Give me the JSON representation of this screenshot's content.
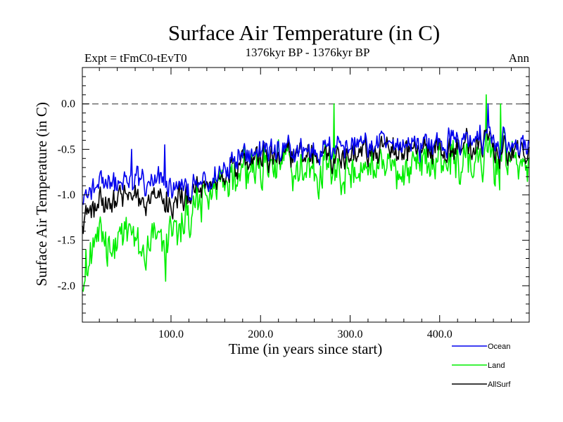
{
  "chart_data": {
    "type": "line",
    "title": "Surface Air Temperature (in C)",
    "subtitle_left": "Expt = tFmC0-tEvT0",
    "subtitle_center": "1376kyr BP - 1376kyr BP",
    "subtitle_right": "Ann",
    "xlabel": "Time (in years since start)",
    "ylabel": "Surface Air Temperature (in C)",
    "xlim": [
      1,
      500
    ],
    "ylim": [
      -2.4,
      0.4
    ],
    "xticks_major": [
      100,
      200,
      300,
      400
    ],
    "xtick_labels": [
      "100.0",
      "200.0",
      "300.0",
      "400.0"
    ],
    "yticks_major": [
      -2.0,
      -1.5,
      -1.0,
      -0.5,
      0.0
    ],
    "ytick_labels": [
      "-2.0",
      "-1.5",
      "-1.0",
      "-0.5",
      "0.0"
    ],
    "reference_line": {
      "y": 0.0,
      "style": "dashed"
    },
    "legend_placement": "bottom-right, below plot",
    "series": [
      {
        "name": "Ocean",
        "color": "#0000ee",
        "anchors": [
          [
            1,
            -1.0
          ],
          [
            15,
            -0.95
          ],
          [
            30,
            -0.85
          ],
          [
            50,
            -0.9
          ],
          [
            70,
            -0.85
          ],
          [
            90,
            -0.9
          ],
          [
            110,
            -0.95
          ],
          [
            130,
            -0.95
          ],
          [
            150,
            -0.8
          ],
          [
            165,
            -0.6
          ],
          [
            180,
            -0.48
          ],
          [
            200,
            -0.5
          ],
          [
            230,
            -0.55
          ],
          [
            260,
            -0.48
          ],
          [
            300,
            -0.45
          ],
          [
            350,
            -0.45
          ],
          [
            400,
            -0.42
          ],
          [
            450,
            -0.38
          ],
          [
            500,
            -0.48
          ]
        ],
        "noise_amplitude": 0.14,
        "spikes": [
          [
            56,
            -0.5
          ],
          [
            93,
            -0.45
          ],
          [
            454,
            0.0
          ]
        ]
      },
      {
        "name": "Land",
        "color": "#00ee00",
        "anchors": [
          [
            1,
            -1.85
          ],
          [
            15,
            -1.55
          ],
          [
            30,
            -1.5
          ],
          [
            50,
            -1.5
          ],
          [
            70,
            -1.6
          ],
          [
            90,
            -1.55
          ],
          [
            110,
            -1.35
          ],
          [
            130,
            -1.2
          ],
          [
            150,
            -0.95
          ],
          [
            165,
            -0.8
          ],
          [
            180,
            -0.62
          ],
          [
            200,
            -0.68
          ],
          [
            230,
            -0.72
          ],
          [
            260,
            -0.68
          ],
          [
            300,
            -0.7
          ],
          [
            350,
            -0.7
          ],
          [
            400,
            -0.65
          ],
          [
            450,
            -0.6
          ],
          [
            500,
            -0.68
          ]
        ],
        "noise_amplitude": 0.24,
        "spikes": [
          [
            1,
            -2.05
          ],
          [
            94,
            -1.95
          ],
          [
            282,
            0.0
          ],
          [
            452,
            0.1
          ],
          [
            468,
            0.0
          ]
        ]
      },
      {
        "name": "AllSurf",
        "color": "#000000",
        "anchors": [
          [
            1,
            -1.25
          ],
          [
            15,
            -1.12
          ],
          [
            30,
            -1.08
          ],
          [
            50,
            -1.05
          ],
          [
            70,
            -1.1
          ],
          [
            90,
            -1.1
          ],
          [
            110,
            -1.05
          ],
          [
            130,
            -1.02
          ],
          [
            150,
            -0.88
          ],
          [
            165,
            -0.68
          ],
          [
            180,
            -0.53
          ],
          [
            200,
            -0.56
          ],
          [
            230,
            -0.6
          ],
          [
            260,
            -0.55
          ],
          [
            300,
            -0.53
          ],
          [
            350,
            -0.53
          ],
          [
            400,
            -0.5
          ],
          [
            450,
            -0.45
          ],
          [
            500,
            -0.55
          ]
        ],
        "noise_amplitude": 0.16,
        "spikes": []
      }
    ]
  }
}
